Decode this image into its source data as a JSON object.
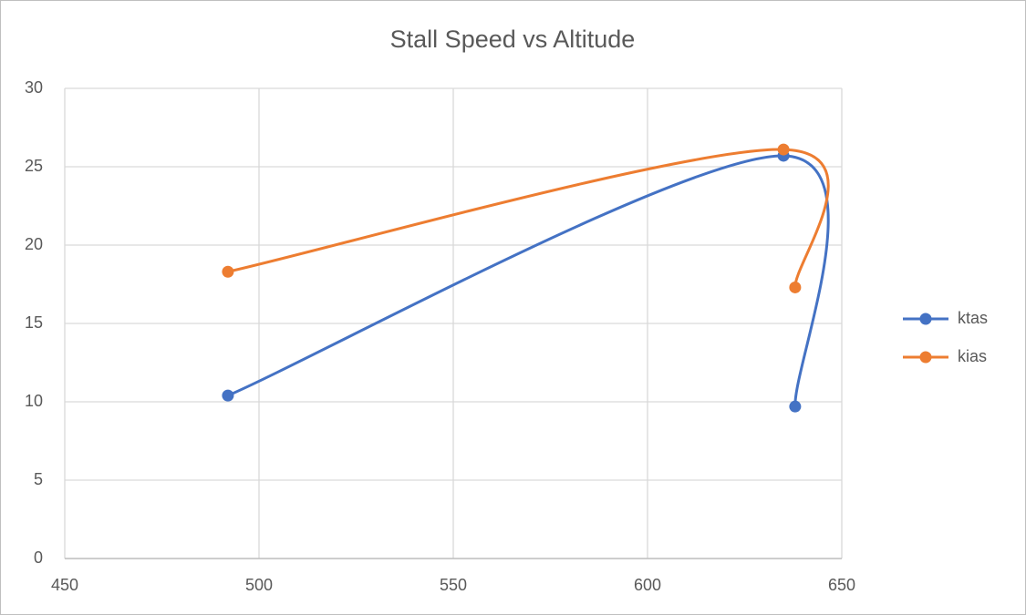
{
  "chart_data": {
    "type": "scatter-smooth",
    "title": "Stall Speed vs Altitude",
    "x": [
      492,
      635,
      638
    ],
    "series": [
      {
        "name": "ktas",
        "color": "#4472c4",
        "values": [
          10.4,
          25.7,
          9.7
        ]
      },
      {
        "name": "kias",
        "color": "#ed7d31",
        "values": [
          18.3,
          26.1,
          17.3
        ]
      }
    ],
    "xlim": [
      450,
      650
    ],
    "xticks": [
      450,
      500,
      550,
      600,
      650
    ],
    "ylim": [
      0,
      30
    ],
    "yticks": [
      0,
      5,
      10,
      15,
      20,
      25,
      30
    ],
    "grid": true,
    "legend": "right"
  }
}
